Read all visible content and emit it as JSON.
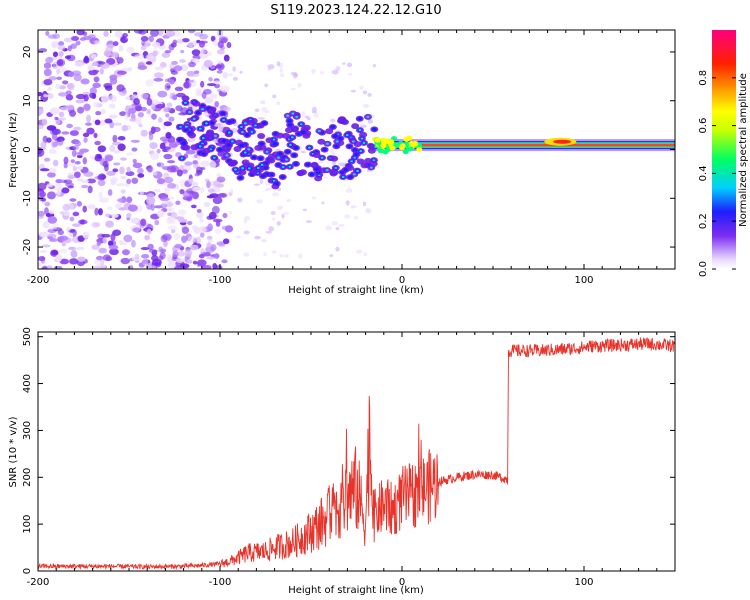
{
  "title": "S119.2023.124.22.12.G10",
  "colors": {
    "snr_line": "#e8332a",
    "frame": "#000000",
    "spec_low": "#9b4dff",
    "spec_mid": "#1a1aff"
  },
  "chart_data": [
    {
      "type": "heatmap",
      "xlabel": "Height of straight line (km)",
      "ylabel": "Frequency (Hz)",
      "xlim": [
        -200,
        150
      ],
      "ylim": [
        -24.5,
        24.5
      ],
      "xticks": [
        -200,
        -100,
        0,
        100
      ],
      "yticks": [
        -20,
        -10,
        0,
        10,
        20
      ],
      "colorbar": {
        "label": "Normalized spectral amplitude",
        "range": [
          0.0,
          1.0
        ],
        "ticks": [
          0.0,
          0.2,
          0.4,
          0.6,
          0.8
        ],
        "tick_labels": [
          "0.0",
          "0.2",
          "0.4",
          "0.6",
          "0.8"
        ],
        "colormap": "rainbow (white-purple-blue-cyan-green-yellow-orange-red-magenta)"
      },
      "ridge": {
        "description": "dominant tone near 0-1 Hz",
        "points": [
          [
            -120,
            5
          ],
          [
            -100,
            2
          ],
          [
            -90,
            -1
          ],
          [
            -80,
            1
          ],
          [
            -70,
            -2
          ],
          [
            -60,
            3
          ],
          [
            -50,
            -2
          ],
          [
            -40,
            1
          ],
          [
            -30,
            0
          ],
          [
            -20,
            1
          ],
          [
            -10,
            1.5
          ],
          [
            0,
            1
          ],
          [
            20,
            1
          ],
          [
            50,
            0.8
          ],
          [
            80,
            1
          ],
          [
            90,
            1.5
          ],
          [
            100,
            0.8
          ],
          [
            150,
            0.8
          ]
        ]
      }
    },
    {
      "type": "line",
      "xlabel": "Height of straight line (km)",
      "ylabel": "SNR (10 * v/v)",
      "xlim": [
        -200,
        150
      ],
      "ylim": [
        0,
        510
      ],
      "xticks": [
        -200,
        -100,
        0,
        100
      ],
      "yticks": [
        0,
        100,
        200,
        300,
        400,
        500
      ],
      "series": [
        {
          "x": [
            -200,
            -180,
            -160,
            -140,
            -120,
            -110,
            -100,
            -95,
            -90,
            -85,
            -80,
            -75,
            -70,
            -65,
            -60,
            -55,
            -50,
            -45,
            -40,
            -35,
            -30,
            -25,
            -20,
            -18,
            -15,
            -10,
            -5,
            0,
            5,
            10,
            15,
            20,
            30,
            40,
            50,
            58,
            58.5,
            65,
            75,
            85,
            95,
            105,
            120,
            135,
            150
          ],
          "y": [
            10,
            10,
            10,
            9,
            10,
            12,
            15,
            20,
            28,
            38,
            40,
            42,
            50,
            55,
            60,
            72,
            85,
            100,
            118,
            140,
            160,
            175,
            105,
            280,
            120,
            140,
            130,
            155,
            160,
            170,
            180,
            190,
            200,
            206,
            205,
            195,
            470,
            470,
            470,
            472,
            475,
            480,
            482,
            485,
            480
          ]
        }
      ]
    }
  ]
}
